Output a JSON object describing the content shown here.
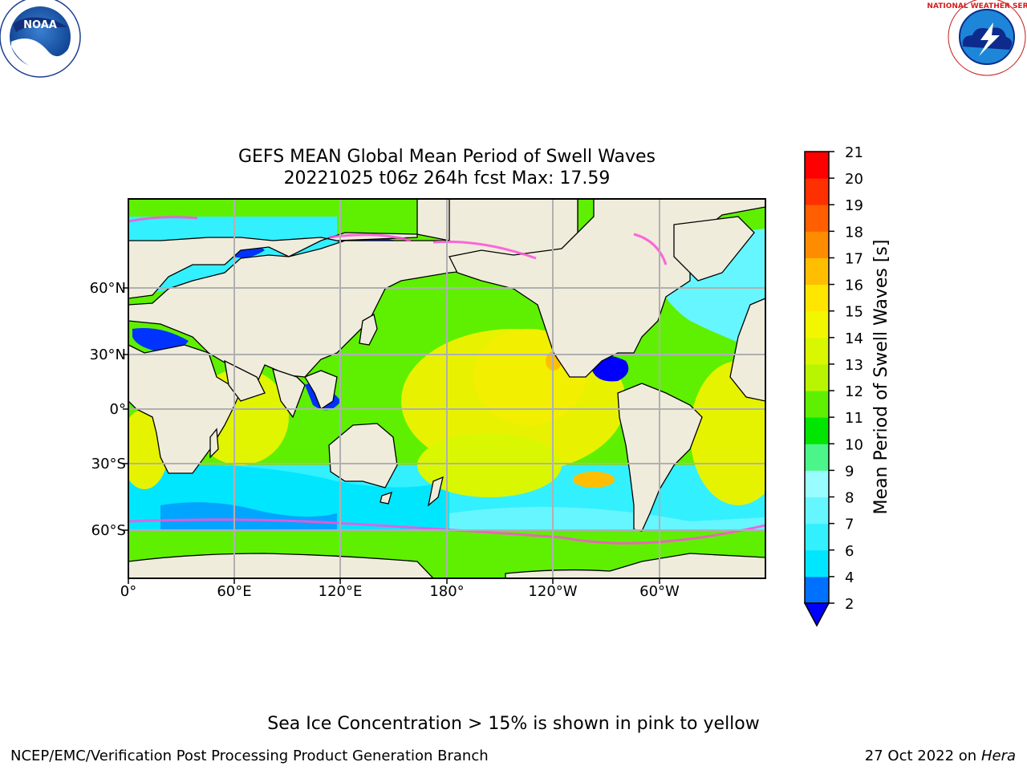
{
  "title": {
    "line1": "GEFS MEAN Global Mean Period of Swell Waves",
    "line2": "20221025 t06z 264h fcst   Max: 17.59"
  },
  "logos": {
    "left": {
      "text": "NOAA",
      "icon": "noaa-logo"
    },
    "right": {
      "text": "NATIONAL WEATHER SERVICE",
      "icon": "nws-logo"
    }
  },
  "map": {
    "projection": "plate-carree",
    "lon_ticks": [
      "0°",
      "60°E",
      "120°E",
      "180°",
      "120°W",
      "60°W"
    ],
    "lat_ticks": [
      "60°N",
      "30°N",
      "0°",
      "30°S",
      "60°S"
    ],
    "colors": {
      "land": "#efecdc",
      "coast": "#000000",
      "grid": "#b0b0b0"
    }
  },
  "colorbar": {
    "label": "Mean Period of Swell Waves [s]",
    "ticks": [
      "2",
      "4",
      "6",
      "7",
      "8",
      "9",
      "10",
      "11",
      "12",
      "13",
      "14",
      "15",
      "16",
      "17",
      "18",
      "19",
      "20",
      "21"
    ],
    "colors": [
      "#0070ff",
      "#00e6ff",
      "#33f0ff",
      "#66f6ff",
      "#99fcff",
      "#4cf58a",
      "#00e600",
      "#5ef000",
      "#b9f500",
      "#d9f700",
      "#f2f700",
      "#ffe600",
      "#ffbf00",
      "#ff8c00",
      "#ff5f00",
      "#ff3000",
      "#ff0000"
    ],
    "extend_color": "#0000ff"
  },
  "caption": "Sea Ice Concentration > 15% is shown in pink to yellow",
  "footer": {
    "left": "NCEP/EMC/Verification Post Processing Product Generation Branch",
    "right_date": "27 Oct 2022 on ",
    "right_machine": "Hera"
  }
}
